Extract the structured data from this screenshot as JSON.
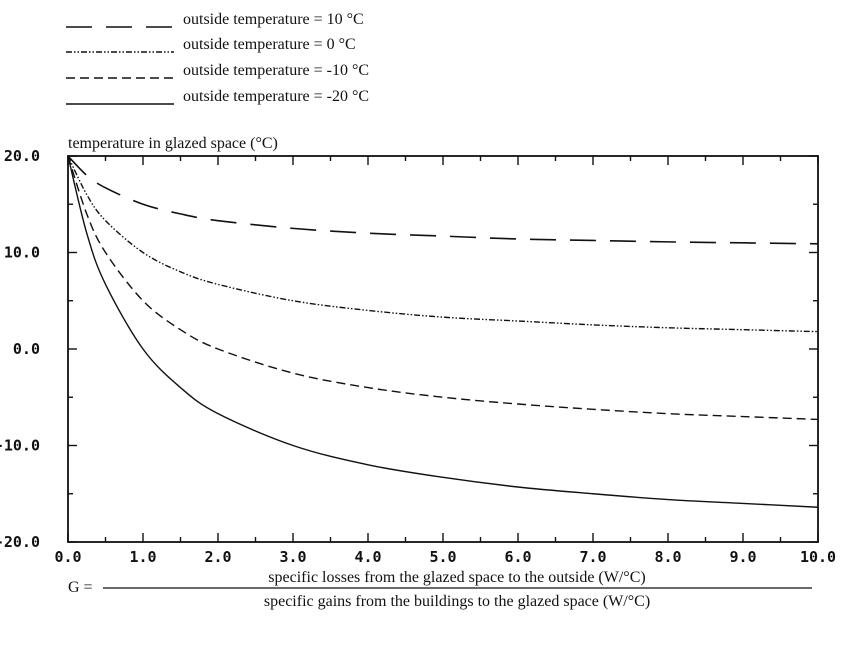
{
  "chart_data": {
    "type": "line",
    "ylabel": "temperature in glazed space (°C)",
    "xlabel_lhs": "G =",
    "xlabel_numerator": "specific losses from the glazed space to the outside (W/°C)",
    "xlabel_denominator": "specific gains from the buildings to the glazed space (W/°C)",
    "xlim": [
      0,
      10
    ],
    "ylim": [
      -20,
      20
    ],
    "x_ticks": [
      0,
      1,
      2,
      3,
      4,
      5,
      6,
      7,
      8,
      9,
      10
    ],
    "x_tick_labels": [
      "0.0",
      "1.0",
      "2.0",
      "3.0",
      "4.0",
      "5.0",
      "6.0",
      "7.0",
      "8.0",
      "9.0",
      "10.0"
    ],
    "y_ticks": [
      -20,
      -10,
      0,
      10,
      20
    ],
    "y_tick_labels": [
      "-20.0",
      "-10.0",
      "0.0",
      "10.0",
      "20.0"
    ],
    "grid": false,
    "legend_position": "top-left, above plot",
    "line_color": "#111111",
    "series": [
      {
        "name": "outside temperature = 10 °C",
        "style": "long-dash",
        "x": [
          0,
          0.25,
          0.5,
          1,
          1.5,
          2,
          3,
          4,
          5,
          6,
          7,
          8,
          9,
          10
        ],
        "y": [
          20,
          18.0,
          16.7,
          15.0,
          14.0,
          13.3,
          12.5,
          12.0,
          11.7,
          11.4,
          11.25,
          11.1,
          11.0,
          10.9
        ]
      },
      {
        "name": "outside temperature = 0 °C",
        "style": "dash-dot-dot",
        "x": [
          0,
          0.25,
          0.5,
          1,
          1.5,
          2,
          3,
          4,
          5,
          6,
          7,
          8,
          9,
          10
        ],
        "y": [
          20,
          16.0,
          13.3,
          10.0,
          8.0,
          6.7,
          5.0,
          4.0,
          3.3,
          2.9,
          2.5,
          2.2,
          2.0,
          1.8
        ]
      },
      {
        "name": "outside temperature = -10 °C",
        "style": "short-dash",
        "x": [
          0,
          0.25,
          0.5,
          1,
          1.5,
          2,
          3,
          4,
          5,
          6,
          7,
          8,
          9,
          10
        ],
        "y": [
          20,
          14.0,
          10.0,
          5.0,
          2.0,
          0.0,
          -2.5,
          -4.0,
          -5.0,
          -5.7,
          -6.25,
          -6.7,
          -7.0,
          -7.3
        ]
      },
      {
        "name": "outside temperature = -20 °C",
        "style": "solid",
        "x": [
          0,
          0.25,
          0.5,
          1,
          1.5,
          2,
          3,
          4,
          5,
          6,
          7,
          8,
          9,
          10
        ],
        "y": [
          20,
          12.0,
          6.7,
          0.0,
          -4.0,
          -6.7,
          -10.0,
          -12.0,
          -13.3,
          -14.3,
          -15.0,
          -15.6,
          -16.0,
          -16.4
        ]
      }
    ]
  }
}
